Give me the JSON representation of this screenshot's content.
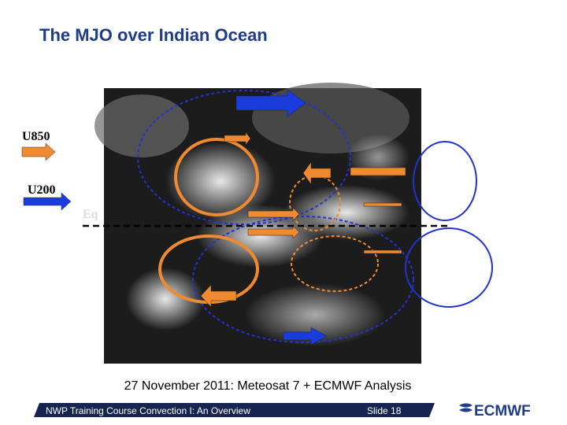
{
  "header": {
    "title": "The MJO over Indian Ocean"
  },
  "legend": {
    "u850": "U850",
    "u200": "U200",
    "equator": "Eq"
  },
  "caption": "27 November 2011: Meteosat 7 + ECMWF Analysis",
  "footer": {
    "course": "NWP Training Course Convection I: An Overview",
    "slide": "Slide 18",
    "logo": "ECMWF"
  }
}
